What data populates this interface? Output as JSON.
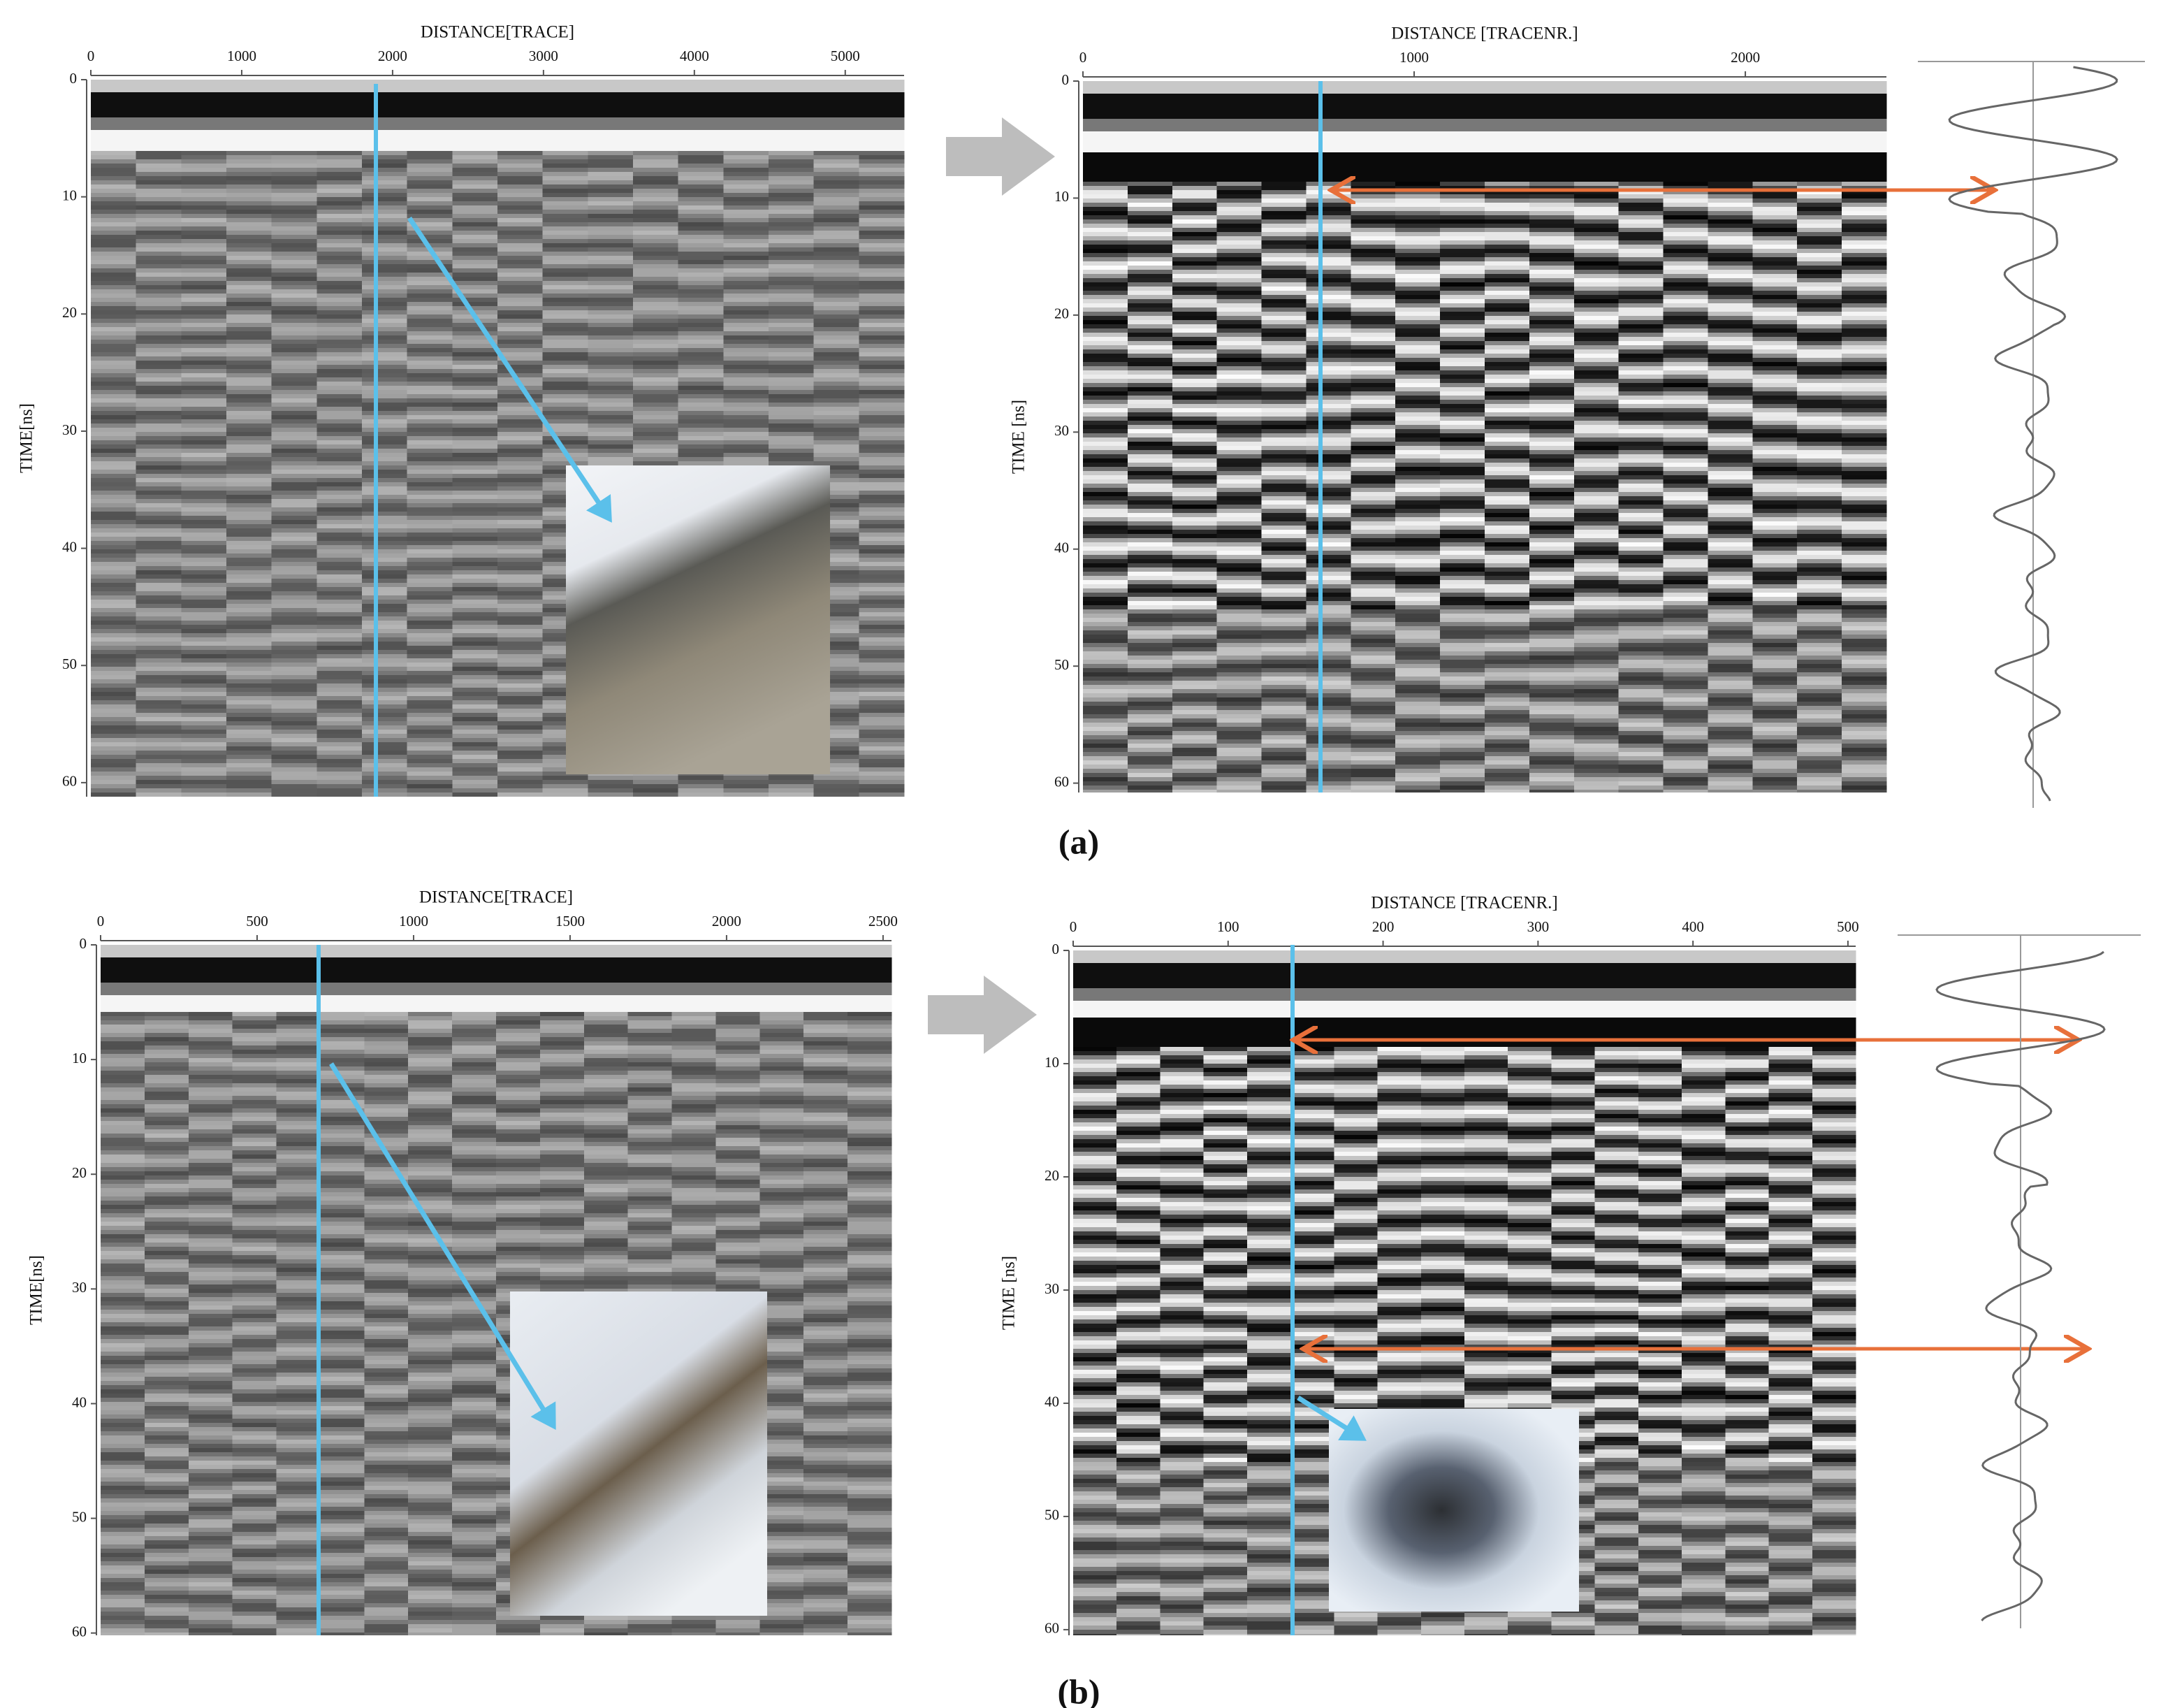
{
  "chart_data": [
    {
      "type": "radargram",
      "x_label": "DISTANCE[TRACE]",
      "y_label": "TIME[ns]",
      "xlim": [
        0,
        5390
      ],
      "xticks": [
        0,
        1000,
        2000,
        3000,
        4000,
        5000
      ],
      "ylim": [
        0,
        61.2
      ],
      "yticks": [
        0,
        10,
        20,
        30,
        40,
        50,
        60
      ]
    },
    {
      "type": "radargram",
      "x_label": "DISTANCE [TRACENR.]",
      "y_label": "TIME [ns]",
      "xlim": [
        0,
        2426
      ],
      "xticks": [
        0,
        1000,
        2000
      ],
      "ylim": [
        0,
        60.8
      ],
      "yticks": [
        0,
        10,
        20,
        30,
        40,
        50,
        60
      ]
    },
    {
      "type": "radargram",
      "x_label": "DISTANCE[TRACE]",
      "y_label": "TIME[ns]",
      "xlim": [
        0,
        2527
      ],
      "xticks": [
        0,
        500,
        1000,
        1500,
        2000,
        2500
      ],
      "ylim": [
        0,
        60.2
      ],
      "yticks": [
        0,
        10,
        20,
        30,
        40,
        50,
        60
      ]
    },
    {
      "type": "radargram",
      "x_label": "DISTANCE [TRACENR.]",
      "y_label": "TIME [ns]",
      "xlim": [
        0,
        505
      ],
      "xticks": [
        0,
        100,
        200,
        300,
        400,
        500
      ],
      "ylim": [
        0,
        60.5
      ],
      "yticks": [
        0,
        10,
        20,
        30,
        40,
        50,
        60
      ]
    }
  ],
  "panel_labels": [
    "(a)",
    "(b)"
  ]
}
